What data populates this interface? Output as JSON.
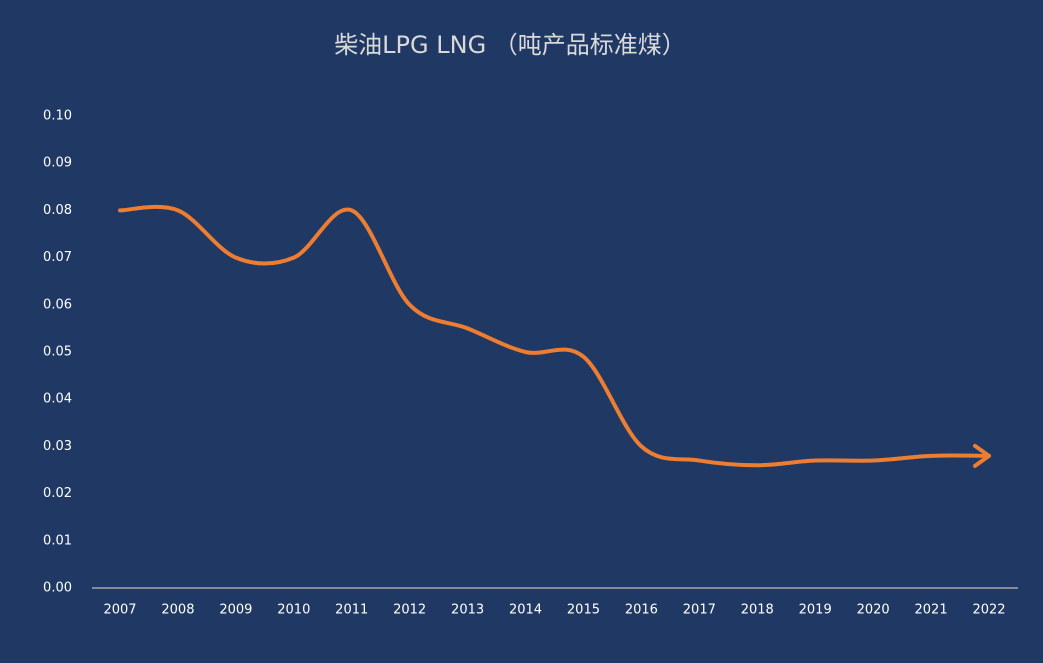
{
  "chart_data": {
    "type": "line",
    "title": "柴油LPG  LNG （吨产品标准煤）",
    "categories": [
      "2007",
      "2008",
      "2009",
      "2010",
      "2011",
      "2012",
      "2013",
      "2014",
      "2015",
      "2016",
      "2017",
      "2018",
      "2019",
      "2020",
      "2021",
      "2022"
    ],
    "series": [
      {
        "name": "柴油LPG LNG",
        "color": "#ed7d31",
        "values": [
          0.08,
          0.08,
          0.07,
          0.07,
          0.08,
          0.06,
          0.055,
          0.05,
          0.049,
          0.03,
          0.027,
          0.026,
          0.027,
          0.027,
          0.028,
          0.028
        ]
      }
    ],
    "ylim": [
      0,
      0.1
    ],
    "yticks": [
      {
        "value": 0,
        "label": "0.00"
      },
      {
        "value": 0.01,
        "label": "0.01"
      },
      {
        "value": 0.02,
        "label": "0.02"
      },
      {
        "value": 0.03,
        "label": "0.03"
      },
      {
        "value": 0.04,
        "label": "0.04"
      },
      {
        "value": 0.05,
        "label": "0.05"
      },
      {
        "value": 0.06,
        "label": "0.06"
      },
      {
        "value": 0.07,
        "label": "0.07"
      },
      {
        "value": 0.08,
        "label": "0.08"
      },
      {
        "value": 0.09,
        "label": "0.09"
      },
      {
        "value": 0.1,
        "label": "0.10"
      }
    ],
    "smooth": true,
    "grid": false
  }
}
